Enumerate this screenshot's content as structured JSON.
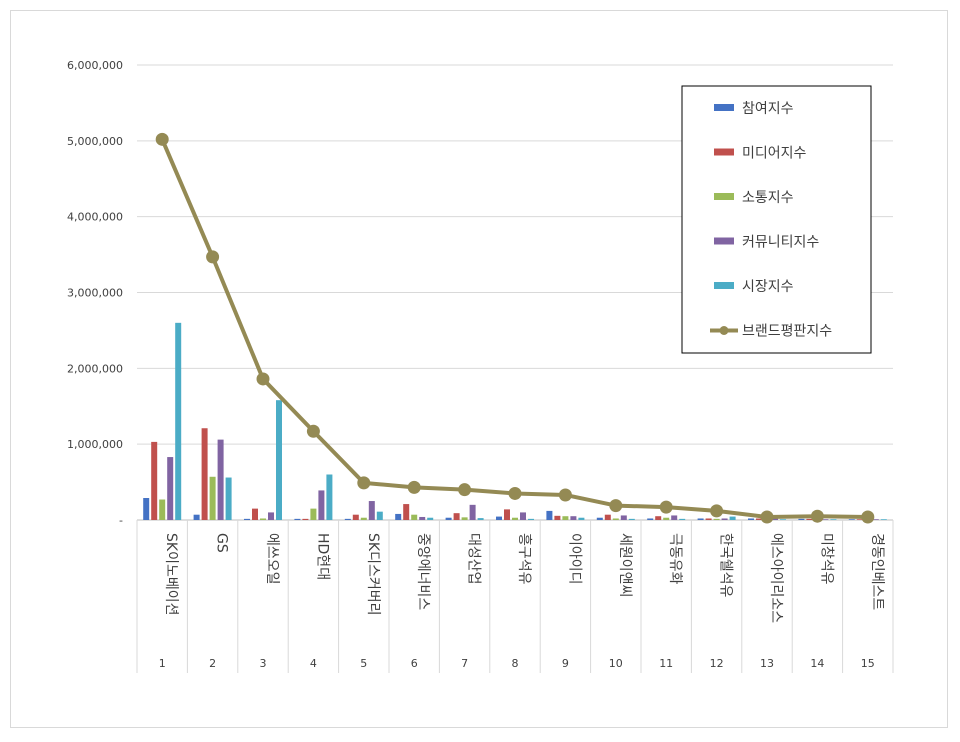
{
  "chart_data": {
    "type": "bar",
    "categories": [
      "1",
      "2",
      "3",
      "4",
      "5",
      "6",
      "7",
      "8",
      "9",
      "10",
      "11",
      "12",
      "13",
      "14",
      "15"
    ],
    "companies": [
      "SK이노베이션",
      "GS",
      "에쓰오일",
      "HD현대",
      "SK디스커버리",
      "중앙에너비스",
      "대성산업",
      "흥구석유",
      "이아이디",
      "세원이앤씨",
      "극동유화",
      "한국쉘석유",
      "에스아이리소스",
      "미창석유",
      "경동인베스트"
    ],
    "series": [
      {
        "name": "참여지수",
        "type": "bar",
        "color": "#4472c4",
        "values": [
          290000,
          70000,
          15000,
          15000,
          15000,
          80000,
          30000,
          45000,
          120000,
          30000,
          20000,
          20000,
          20000,
          15000,
          10000
        ]
      },
      {
        "name": "미디어지수",
        "type": "bar",
        "color": "#c0504d",
        "values": [
          1030000,
          1210000,
          150000,
          15000,
          70000,
          210000,
          90000,
          140000,
          55000,
          70000,
          50000,
          20000,
          20000,
          15000,
          10000
        ]
      },
      {
        "name": "소통지수",
        "type": "bar",
        "color": "#9bbb59",
        "values": [
          270000,
          570000,
          20000,
          150000,
          30000,
          70000,
          35000,
          30000,
          50000,
          20000,
          30000,
          15000,
          10000,
          10000,
          10000
        ]
      },
      {
        "name": "커뮤니티지수",
        "type": "bar",
        "color": "#8064a2",
        "values": [
          830000,
          1060000,
          100000,
          390000,
          250000,
          40000,
          200000,
          100000,
          50000,
          60000,
          60000,
          20000,
          20000,
          10000,
          10000
        ]
      },
      {
        "name": "시장지수",
        "type": "bar",
        "color": "#4bacc6",
        "values": [
          2600000,
          560000,
          1580000,
          600000,
          110000,
          30000,
          25000,
          15000,
          30000,
          15000,
          15000,
          45000,
          10000,
          10000,
          10000
        ]
      },
      {
        "name": "브랜드평판지수",
        "type": "line",
        "color": "#948a54",
        "values": [
          5020000,
          3470000,
          1860000,
          1170000,
          490000,
          430000,
          400000,
          350000,
          330000,
          190000,
          170000,
          120000,
          40000,
          50000,
          40000
        ]
      }
    ],
    "ylim": [
      0,
      6000000
    ],
    "yticks": [
      "-",
      "1,000,000",
      "2,000,000",
      "3,000,000",
      "4,000,000",
      "5,000,000",
      "6,000,000"
    ],
    "grid": true,
    "legend_position": "top-right"
  }
}
